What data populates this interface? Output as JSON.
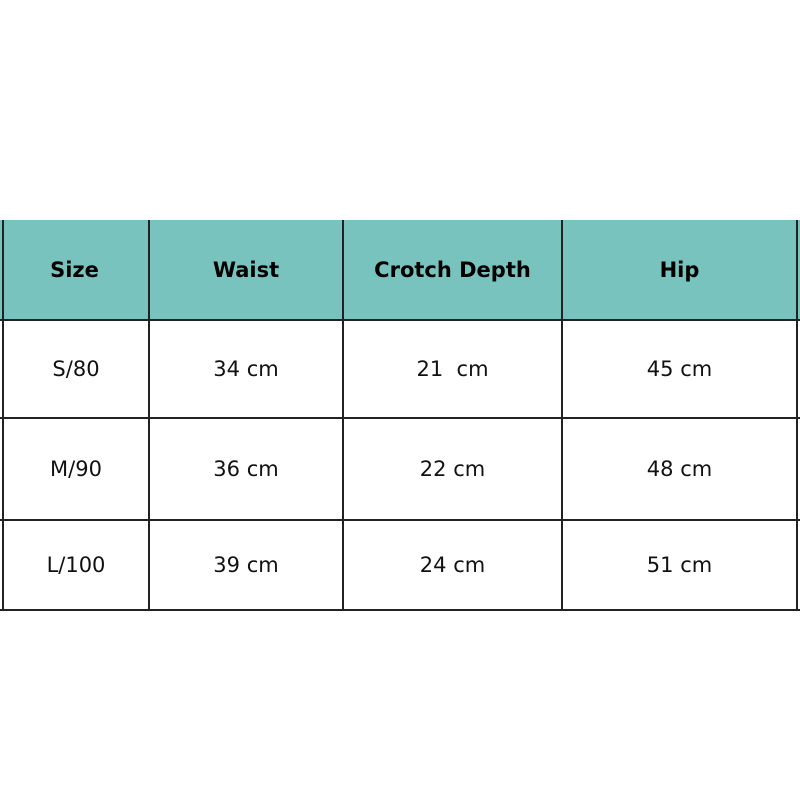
{
  "table": {
    "header_color": "#78c3bd",
    "headers": [
      "Size",
      "Waist",
      "Crotch Depth",
      "Hip"
    ],
    "rows": [
      [
        "S/80",
        "34 cm",
        "21  cm",
        "45 cm"
      ],
      [
        "M/90",
        "36 cm",
        "22 cm",
        "48 cm"
      ],
      [
        "L/100",
        "39 cm",
        "24 cm",
        "51 cm"
      ]
    ]
  }
}
